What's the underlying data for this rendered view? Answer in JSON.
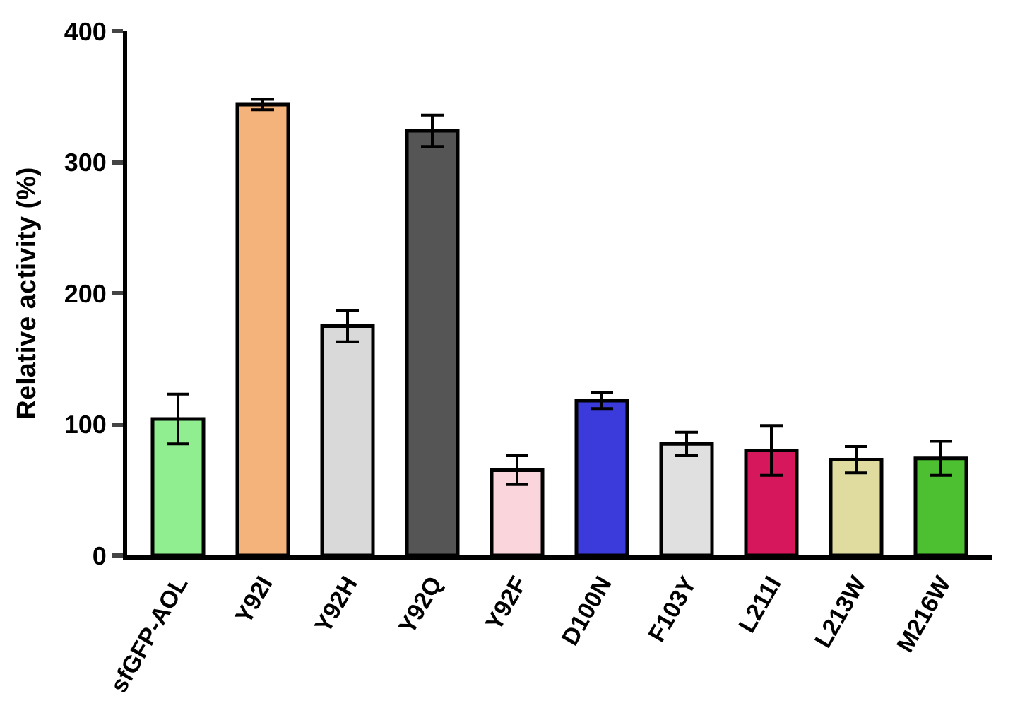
{
  "chart_data": {
    "type": "bar",
    "ylabel": "Relative activity (%)",
    "categories": [
      "sfGFP-AOL",
      "Y92I",
      "Y92H",
      "Y92Q",
      "Y92F",
      "D100N",
      "F103Y",
      "L211I",
      "L213W",
      "M216W"
    ],
    "values": [
      104,
      344,
      175,
      324,
      65,
      118,
      85,
      80,
      73,
      74
    ],
    "errors": [
      19,
      4,
      12,
      12,
      11,
      6,
      9,
      19,
      10,
      13
    ],
    "colors": [
      "#90ee90",
      "#f4b37a",
      "#d9d9d9",
      "#555555",
      "#fbd5dc",
      "#3b3bdb",
      "#e0e0e0",
      "#d6175b",
      "#e0dca0",
      "#4cc030"
    ],
    "ylim": [
      0,
      400
    ],
    "yticks": [
      0,
      100,
      200,
      300,
      400
    ]
  }
}
